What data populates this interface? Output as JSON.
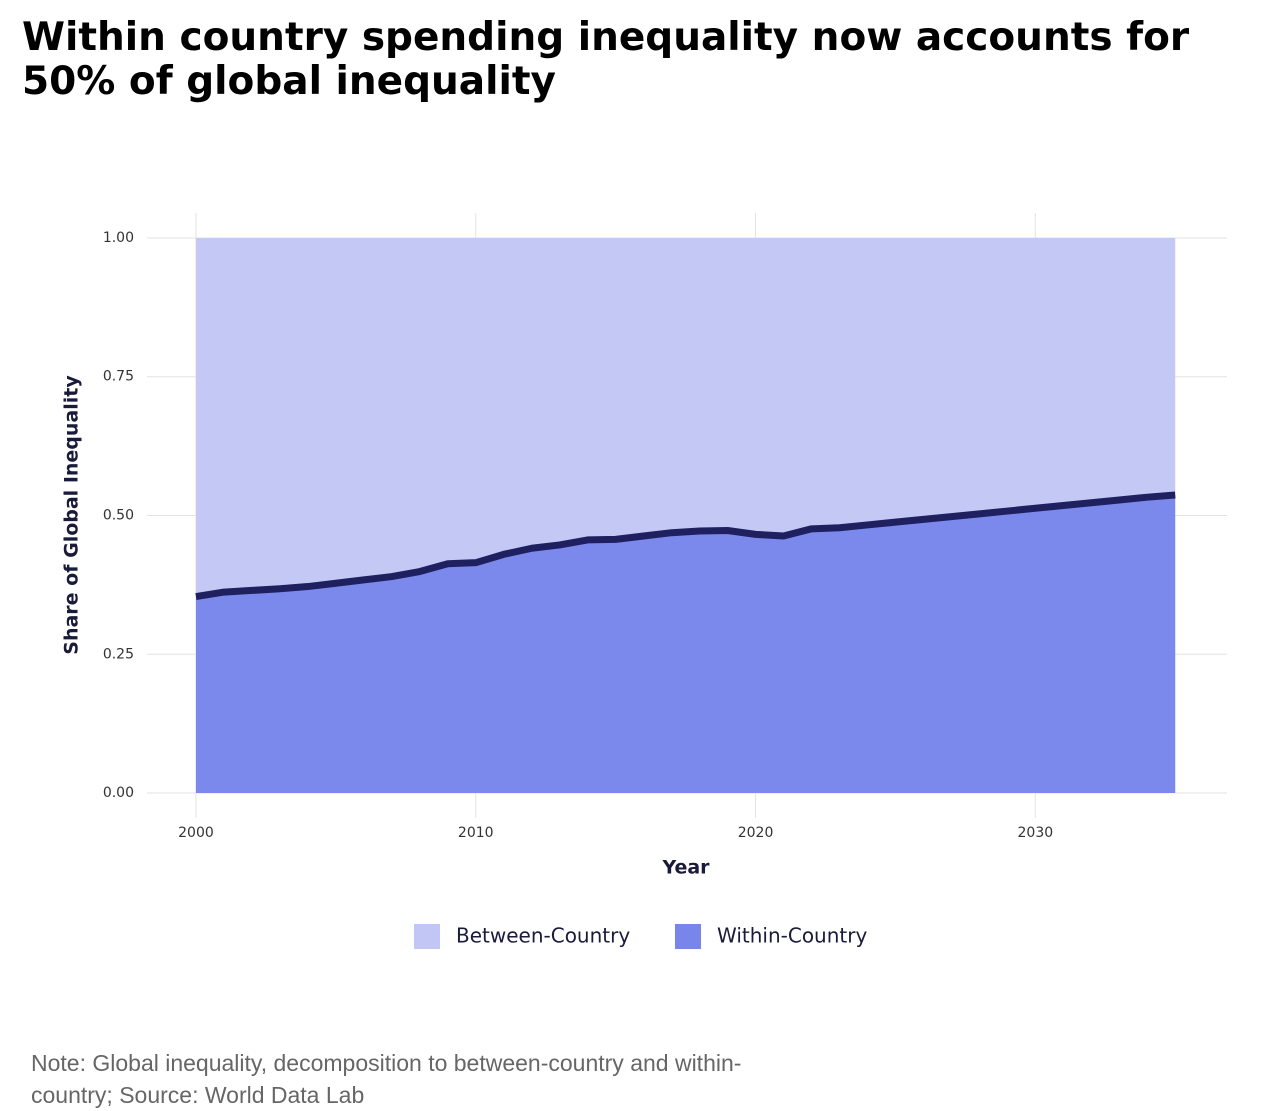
{
  "chart_data": {
    "type": "stacked_area",
    "title": "Within country spending inequality now accounts for 50% of global inequality",
    "xlabel": "Year",
    "ylabel": "Share of Global Inequality",
    "note": "Note: Global inequality, decomposition to between-country and within-country; Source: World Data Lab",
    "x": [
      2000,
      2001,
      2002,
      2003,
      2004,
      2005,
      2006,
      2007,
      2008,
      2009,
      2010,
      2011,
      2012,
      2013,
      2014,
      2015,
      2016,
      2017,
      2018,
      2019,
      2020,
      2021,
      2022,
      2023,
      2024,
      2025,
      2026,
      2027,
      2028,
      2029,
      2030,
      2031,
      2032,
      2033,
      2034,
      2035
    ],
    "series": [
      {
        "name": "Within-Country",
        "color": "#7885eb",
        "line_color": "#1f2060",
        "values": [
          0.354,
          0.362,
          0.365,
          0.368,
          0.372,
          0.378,
          0.384,
          0.39,
          0.399,
          0.413,
          0.415,
          0.43,
          0.441,
          0.447,
          0.456,
          0.457,
          0.463,
          0.469,
          0.472,
          0.473,
          0.466,
          0.463,
          0.476,
          0.478,
          0.483,
          0.488,
          0.493,
          0.498,
          0.503,
          0.508,
          0.513,
          0.518,
          0.523,
          0.528,
          0.533,
          0.537
        ]
      },
      {
        "name": "Between-Country",
        "color": "#c2c6f5",
        "values": [
          0.646,
          0.638,
          0.635,
          0.632,
          0.628,
          0.622,
          0.616,
          0.61,
          0.601,
          0.587,
          0.585,
          0.57,
          0.559,
          0.553,
          0.544,
          0.543,
          0.537,
          0.531,
          0.528,
          0.527,
          0.534,
          0.537,
          0.524,
          0.522,
          0.517,
          0.512,
          0.507,
          0.502,
          0.497,
          0.492,
          0.487,
          0.482,
          0.477,
          0.472,
          0.467,
          0.463
        ]
      }
    ],
    "legend_order": [
      1,
      0
    ],
    "xlim": [
      1998.25,
      2036.85
    ],
    "xticks": [
      2000,
      2010,
      2020,
      2030
    ],
    "ylim": [
      -0.045,
      1.045
    ],
    "yticks": [
      {
        "value": 0,
        "label": "0.00"
      },
      0.25,
      {
        "value": 0.5,
        "label": "0.50"
      },
      0.75,
      {
        "value": 1,
        "label": "1.00"
      }
    ],
    "grid": true
  }
}
